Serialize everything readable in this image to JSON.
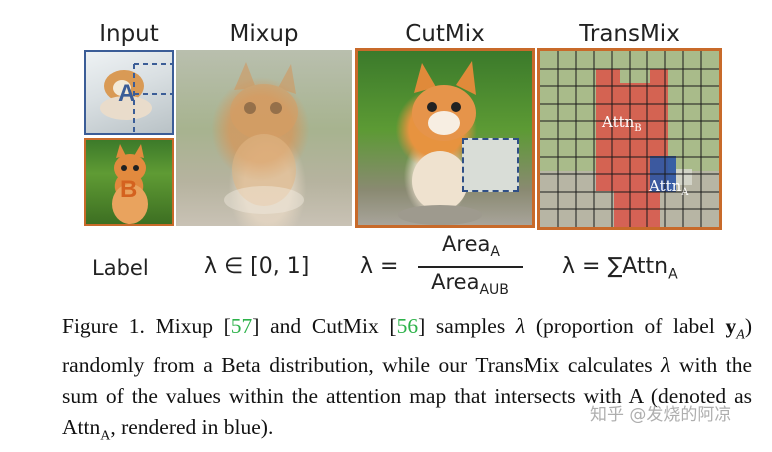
{
  "columns": {
    "input": "Input",
    "mixup": "Mixup",
    "cutmix": "CutMix",
    "transmix": "TransMix"
  },
  "input_letters": {
    "a": "A",
    "b": "B"
  },
  "attn": {
    "b_base": "Attn",
    "b_sub": "B",
    "a_base": "Attn",
    "a_sub": "A"
  },
  "formulas": {
    "label": "Label",
    "mixup": "λ ∈ [0, 1]",
    "cutmix_lhs": "λ =",
    "cutmix_num_base": "Area",
    "cutmix_num_sub": "A",
    "cutmix_den_base": "Area",
    "cutmix_den_sub": "AUB",
    "transmix_lhs": "λ = ∑Attn",
    "transmix_sub": "A"
  },
  "caption": {
    "p1": "Figure 1. Mixup [",
    "c1": "57",
    "p2": "] and CutMix [",
    "c2": "56",
    "p3": "] samples ",
    "lambda1": "λ",
    "p4": " (proportion of label ",
    "yA_bold": "y",
    "yA_sub": "A",
    "p5": ") randomly from a Beta distribution, while our TransMix calculates ",
    "lambda2": "λ",
    "p6": " with the sum of the values within the attention map that intersects with A (denoted as Attn",
    "attn_sub": "A",
    "p7": ", rendered in blue)."
  },
  "watermark": "知乎 @发烧的阿凉",
  "colors": {
    "orange_border": "#c86a2a",
    "blue_border": "#3b5d97",
    "cite_green": "#2db24a",
    "attn_red": "#d9574a",
    "attn_blue": "#2f58a6"
  }
}
